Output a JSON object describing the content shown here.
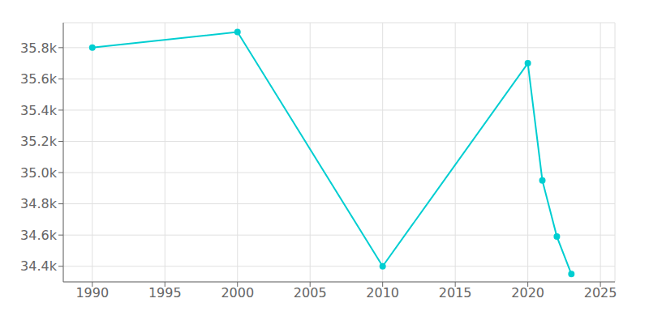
{
  "chart_data": {
    "type": "line",
    "x": [
      1990,
      2000,
      2010,
      2020,
      2021,
      2022,
      2023
    ],
    "values": [
      35800,
      35900,
      34400,
      35700,
      34950,
      34590,
      34350
    ],
    "color": "#00CED1",
    "marker": "circle",
    "xlim": [
      1988,
      2026
    ],
    "xticks": [
      1990,
      1995,
      2000,
      2005,
      2010,
      2015,
      2020,
      2025
    ],
    "ylim": [
      34300,
      35960
    ],
    "yticks": [
      {
        "value": 34400,
        "label": "34.4k"
      },
      {
        "value": 34600,
        "label": "34.6k"
      },
      {
        "value": 34800,
        "label": "34.8k"
      },
      {
        "value": 35000,
        "label": "35.0k"
      },
      {
        "value": 35200,
        "label": "35.2k"
      },
      {
        "value": 35400,
        "label": "35.4k"
      },
      {
        "value": 35600,
        "label": "35.6k"
      },
      {
        "value": 35800,
        "label": "35.8k"
      }
    ],
    "grid": true
  }
}
